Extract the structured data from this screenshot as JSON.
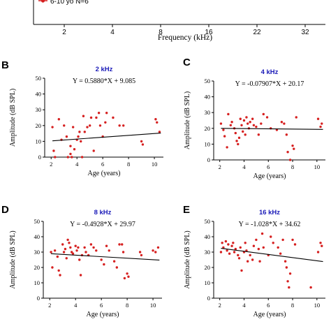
{
  "top_strip": {
    "legend_text": "6-10 yo N=6",
    "xlabel": "Frequency (kHz)",
    "xticks": [
      "2",
      "4",
      "8",
      "16",
      "22",
      "32"
    ],
    "legend_color": "#d62020"
  },
  "chart_data": [
    {
      "panel": "B",
      "type": "scatter",
      "title": "2 kHz",
      "equation": "Y = 0.5880*X + 9.085",
      "xlabel": "Age (years)",
      "ylabel": "Amplitude (dB SPL)",
      "xlim": [
        1.5,
        10.7
      ],
      "ylim": [
        0,
        50
      ],
      "xticks": [
        2,
        4,
        6,
        8,
        10
      ],
      "yticks": [
        0,
        10,
        20,
        30,
        40,
        50
      ],
      "regression": {
        "slope": 0.588,
        "intercept": 9.085,
        "x_range": [
          2.1,
          10.5
        ]
      },
      "point_color": "#d62020",
      "points": [
        [
          2.1,
          19
        ],
        [
          2.2,
          4
        ],
        [
          2.3,
          0
        ],
        [
          2.6,
          24
        ],
        [
          2.8,
          11
        ],
        [
          3.0,
          20
        ],
        [
          3.2,
          13
        ],
        [
          3.3,
          0
        ],
        [
          3.5,
          7
        ],
        [
          3.5,
          2
        ],
        [
          3.6,
          0
        ],
        [
          3.7,
          19
        ],
        [
          3.8,
          5
        ],
        [
          4.0,
          11
        ],
        [
          4.1,
          13
        ],
        [
          4.2,
          16
        ],
        [
          4.3,
          10
        ],
        [
          4.4,
          0
        ],
        [
          4.5,
          26
        ],
        [
          4.6,
          16
        ],
        [
          4.8,
          19
        ],
        [
          5.0,
          20
        ],
        [
          5.1,
          25
        ],
        [
          5.3,
          4
        ],
        [
          5.5,
          25
        ],
        [
          5.7,
          28
        ],
        [
          5.8,
          20
        ],
        [
          6.0,
          13
        ],
        [
          6.2,
          22
        ],
        [
          6.3,
          28
        ],
        [
          6.8,
          25
        ],
        [
          7.3,
          20
        ],
        [
          7.6,
          20
        ],
        [
          9.0,
          10
        ],
        [
          9.1,
          8
        ],
        [
          10.1,
          24
        ],
        [
          10.2,
          22
        ],
        [
          10.4,
          16
        ]
      ]
    },
    {
      "panel": "C",
      "type": "scatter",
      "title": "4 kHz",
      "equation": "Y = -0.07907*X + 20.17",
      "xlabel": "Age (years)",
      "ylabel": "Amplitude (dB SPL)",
      "xlim": [
        1.5,
        10.7
      ],
      "ylim": [
        0,
        50
      ],
      "xticks": [
        2,
        4,
        6,
        8,
        10
      ],
      "yticks": [
        0,
        10,
        20,
        30,
        40,
        50
      ],
      "regression": {
        "slope": -0.07907,
        "intercept": 20.17,
        "x_range": [
          2.1,
          10.5
        ]
      },
      "point_color": "#d62020",
      "points": [
        [
          2.1,
          23
        ],
        [
          2.3,
          19
        ],
        [
          2.4,
          15
        ],
        [
          2.6,
          8
        ],
        [
          2.7,
          29
        ],
        [
          2.9,
          22
        ],
        [
          3.0,
          24
        ],
        [
          3.2,
          20
        ],
        [
          3.3,
          17
        ],
        [
          3.4,
          12
        ],
        [
          3.5,
          10
        ],
        [
          3.6,
          14
        ],
        [
          3.7,
          26
        ],
        [
          3.8,
          22
        ],
        [
          3.9,
          18
        ],
        [
          4.0,
          25
        ],
        [
          4.1,
          16
        ],
        [
          4.2,
          27
        ],
        [
          4.3,
          23
        ],
        [
          4.4,
          20
        ],
        [
          4.5,
          24
        ],
        [
          4.7,
          26
        ],
        [
          4.8,
          22
        ],
        [
          5.0,
          21
        ],
        [
          5.2,
          16
        ],
        [
          5.4,
          23
        ],
        [
          5.6,
          29
        ],
        [
          5.9,
          27
        ],
        [
          6.2,
          20
        ],
        [
          6.7,
          19
        ],
        [
          7.1,
          24
        ],
        [
          7.3,
          23
        ],
        [
          7.5,
          16
        ],
        [
          7.6,
          5
        ],
        [
          7.8,
          0
        ],
        [
          8.0,
          9
        ],
        [
          8.1,
          7
        ],
        [
          8.3,
          27
        ],
        [
          10.1,
          26
        ],
        [
          10.3,
          21
        ],
        [
          10.4,
          23
        ]
      ]
    },
    {
      "panel": "D",
      "type": "scatter",
      "title": "8 kHz",
      "equation": "Y = -0.4928*X + 29.97",
      "xlabel": "Age (years)",
      "ylabel": "Amplitude (dB SPL)",
      "xlim": [
        1.5,
        10.7
      ],
      "ylim": [
        0,
        50
      ],
      "xticks": [
        2,
        4,
        6,
        8,
        10
      ],
      "yticks": [
        0,
        10,
        20,
        30,
        40,
        50
      ],
      "regression": {
        "slope": -0.4928,
        "intercept": 29.97,
        "x_range": [
          2.1,
          10.5
        ]
      },
      "point_color": "#d62020",
      "points": [
        [
          2.1,
          30
        ],
        [
          2.2,
          20
        ],
        [
          2.4,
          31
        ],
        [
          2.6,
          27
        ],
        [
          2.7,
          18
        ],
        [
          2.8,
          15
        ],
        [
          3.0,
          35
        ],
        [
          3.1,
          30
        ],
        [
          3.2,
          32
        ],
        [
          3.3,
          26
        ],
        [
          3.4,
          38
        ],
        [
          3.5,
          36
        ],
        [
          3.6,
          33
        ],
        [
          3.7,
          30
        ],
        [
          3.8,
          29
        ],
        [
          4.0,
          34
        ],
        [
          4.1,
          31
        ],
        [
          4.2,
          33
        ],
        [
          4.3,
          25
        ],
        [
          4.4,
          15
        ],
        [
          4.5,
          28
        ],
        [
          4.7,
          33
        ],
        [
          4.8,
          30
        ],
        [
          5.0,
          28
        ],
        [
          5.2,
          35
        ],
        [
          5.4,
          33
        ],
        [
          5.6,
          31
        ],
        [
          6.0,
          25
        ],
        [
          6.2,
          22
        ],
        [
          6.4,
          34
        ],
        [
          6.6,
          31
        ],
        [
          7.0,
          24
        ],
        [
          7.2,
          20
        ],
        [
          7.4,
          35
        ],
        [
          7.6,
          35
        ],
        [
          7.7,
          30
        ],
        [
          7.8,
          13
        ],
        [
          8.0,
          16
        ],
        [
          8.1,
          14
        ],
        [
          9.0,
          30
        ],
        [
          9.1,
          28
        ],
        [
          10.0,
          31
        ],
        [
          10.2,
          30
        ],
        [
          10.4,
          33
        ]
      ]
    },
    {
      "panel": "E",
      "type": "scatter",
      "title": "16 kHz",
      "equation": "Y = -1.028*X + 34.62",
      "xlabel": "Age (years)",
      "ylabel": "Amplitude (dB SPL)",
      "xlim": [
        1.5,
        10.7
      ],
      "ylim": [
        0,
        50
      ],
      "xticks": [
        2,
        4,
        6,
        8,
        10
      ],
      "yticks": [
        0,
        10,
        20,
        30,
        40,
        50
      ],
      "regression": {
        "slope": -1.028,
        "intercept": 34.62,
        "x_range": [
          2.1,
          10.5
        ]
      },
      "point_color": "#d62020",
      "points": [
        [
          2.1,
          30
        ],
        [
          2.2,
          36
        ],
        [
          2.3,
          33
        ],
        [
          2.5,
          37
        ],
        [
          2.6,
          31
        ],
        [
          2.7,
          35
        ],
        [
          2.8,
          29
        ],
        [
          3.0,
          34
        ],
        [
          3.1,
          36
        ],
        [
          3.2,
          30
        ],
        [
          3.3,
          32
        ],
        [
          3.5,
          28
        ],
        [
          3.6,
          26
        ],
        [
          3.7,
          33
        ],
        [
          3.8,
          18
        ],
        [
          4.0,
          30
        ],
        [
          4.1,
          36
        ],
        [
          4.2,
          31
        ],
        [
          4.3,
          24
        ],
        [
          4.5,
          28
        ],
        [
          4.7,
          25
        ],
        [
          4.8,
          34
        ],
        [
          5.0,
          38
        ],
        [
          5.2,
          32
        ],
        [
          5.3,
          24
        ],
        [
          5.5,
          42
        ],
        [
          5.6,
          33
        ],
        [
          6.0,
          28
        ],
        [
          6.2,
          40
        ],
        [
          6.4,
          36
        ],
        [
          6.8,
          33
        ],
        [
          7.0,
          29
        ],
        [
          7.2,
          38
        ],
        [
          7.4,
          24
        ],
        [
          7.5,
          20
        ],
        [
          7.6,
          11
        ],
        [
          7.7,
          7
        ],
        [
          7.8,
          16
        ],
        [
          8.0,
          38
        ],
        [
          8.2,
          35
        ],
        [
          9.5,
          7
        ],
        [
          10.1,
          30
        ],
        [
          10.3,
          36
        ],
        [
          10.4,
          34
        ]
      ]
    }
  ]
}
